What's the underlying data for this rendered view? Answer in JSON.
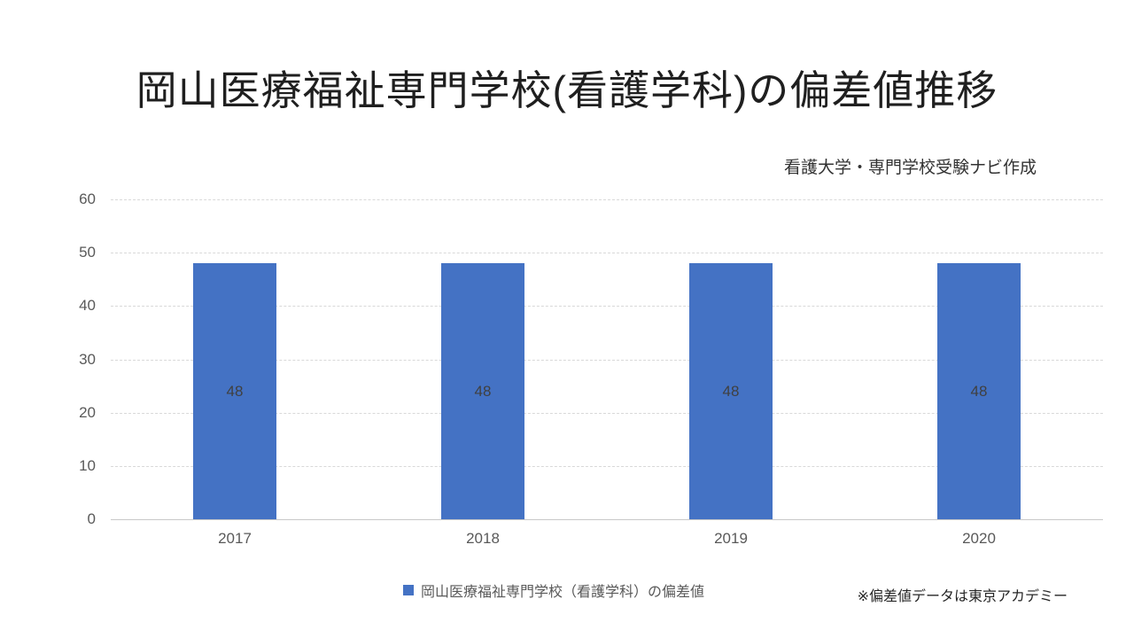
{
  "slide": {
    "title": "岡山医療福祉専門学校(看護学科)の偏差値推移",
    "subtitle": "看護大学・専門学校受験ナビ作成",
    "footnote": "※偏差値データは東京アカデミー"
  },
  "legend": {
    "marker_color": "#4472C4",
    "label": "岡山医療福祉専門学校（看護学科）の偏差値"
  },
  "chart_data": {
    "type": "bar",
    "title": "岡山医療福祉専門学校(看護学科)の偏差値推移",
    "categories": [
      "2017",
      "2018",
      "2019",
      "2020"
    ],
    "series": [
      {
        "name": "岡山医療福祉専門学校（看護学科）の偏差値",
        "values": [
          48,
          48,
          48,
          48
        ]
      }
    ],
    "value_labels": [
      "48",
      "48",
      "48",
      "48"
    ],
    "xlabel": "",
    "ylabel": "",
    "ylim": [
      0,
      60
    ],
    "yticks": [
      0,
      10,
      20,
      30,
      40,
      50,
      60
    ],
    "grid": true,
    "gridline_color": "#D9D9D9",
    "axis_line_color": "#C8C8C8",
    "bar_color": "#4472C4",
    "value_label_color": "#404040",
    "tick_label_color": "#595959",
    "legend_position": "bottom"
  }
}
